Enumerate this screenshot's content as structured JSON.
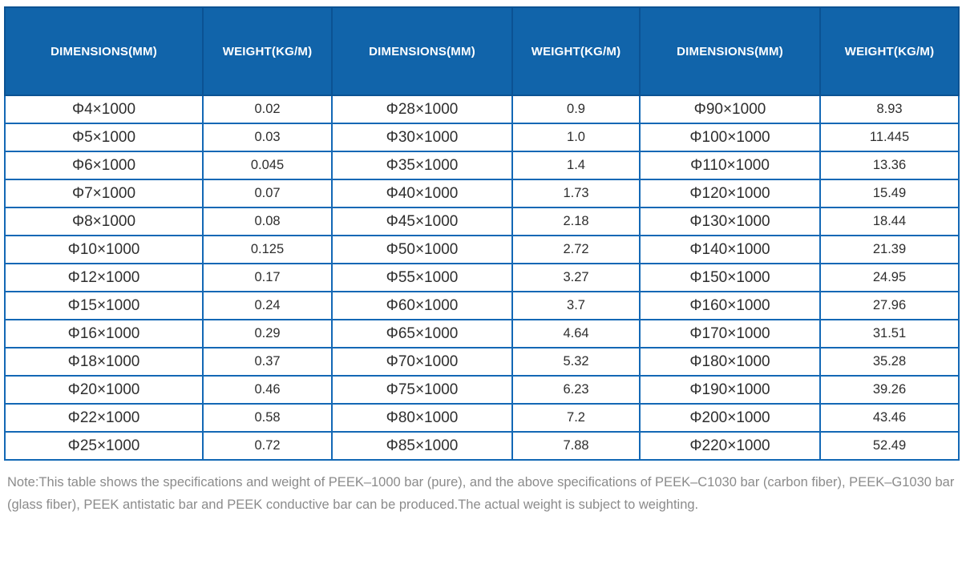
{
  "table": {
    "header_labels": [
      "DIMENSIONS(MM)",
      "WEIGHT(KG/M)",
      "DIMENSIONS(MM)",
      "WEIGHT(KG/M)",
      "DIMENSIONS(MM)",
      "WEIGHT(KG/M)"
    ],
    "rows": [
      [
        "Φ4×1000",
        "0.02",
        "Φ28×1000",
        "0.9",
        "Φ90×1000",
        "8.93"
      ],
      [
        "Φ5×1000",
        "0.03",
        "Φ30×1000",
        "1.0",
        "Φ100×1000",
        "11.445"
      ],
      [
        "Φ6×1000",
        "0.045",
        "Φ35×1000",
        "1.4",
        "Φ110×1000",
        "13.36"
      ],
      [
        "Φ7×1000",
        "0.07",
        "Φ40×1000",
        "1.73",
        "Φ120×1000",
        "15.49"
      ],
      [
        "Φ8×1000",
        "0.08",
        "Φ45×1000",
        "2.18",
        "Φ130×1000",
        "18.44"
      ],
      [
        "Φ10×1000",
        "0.125",
        "Φ50×1000",
        "2.72",
        "Φ140×1000",
        "21.39"
      ],
      [
        "Φ12×1000",
        "0.17",
        "Φ55×1000",
        "3.27",
        "Φ150×1000",
        "24.95"
      ],
      [
        "Φ15×1000",
        "0.24",
        "Φ60×1000",
        "3.7",
        "Φ160×1000",
        "27.96"
      ],
      [
        "Φ16×1000",
        "0.29",
        "Φ65×1000",
        "4.64",
        "Φ170×1000",
        "31.51"
      ],
      [
        "Φ18×1000",
        "0.37",
        "Φ70×1000",
        "5.32",
        "Φ180×1000",
        "35.28"
      ],
      [
        "Φ20×1000",
        "0.46",
        "Φ75×1000",
        "6.23",
        "Φ190×1000",
        "39.26"
      ],
      [
        "Φ22×1000",
        "0.58",
        "Φ80×1000",
        "7.2",
        "Φ200×1000",
        "43.46"
      ],
      [
        "Φ25×1000",
        "0.72",
        "Φ85×1000",
        "7.88",
        "Φ220×1000",
        "52.49"
      ]
    ]
  },
  "note": "Note:This table shows the specifications and weight of PEEK–1000 bar (pure), and the above specifications of PEEK–C1030 bar (carbon fiber), PEEK–G1030 bar (glass fiber), PEEK antistatic bar and PEEK conductive bar can be produced.The actual weight is subject to weighting.",
  "colors": {
    "header_bg": "#1164aa",
    "header_separator": "#0b5293",
    "cell_border": "#1368b5",
    "cell_text": "#2e2e2e",
    "note_text": "#8b8b8b"
  }
}
